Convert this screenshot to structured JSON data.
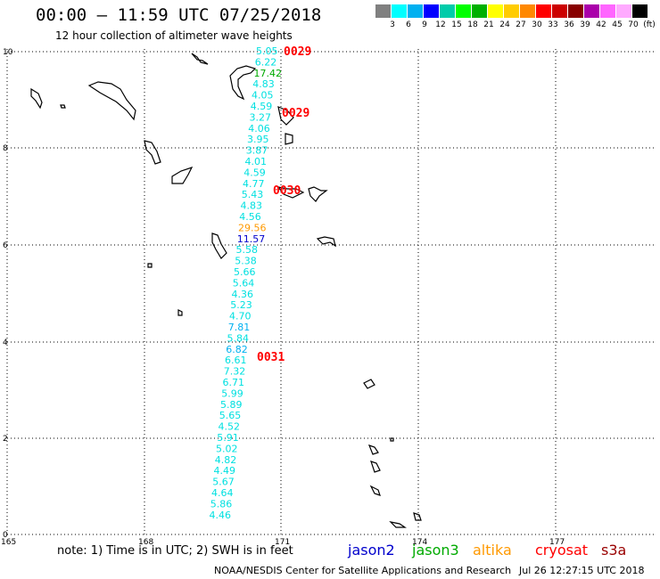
{
  "header": {
    "title": "00:00 — 11:59 UTC 07/25/2018",
    "subtitle": "12 hour collection of altimeter wave heights"
  },
  "color_scale": {
    "colors": [
      "#808080",
      "#00ffff",
      "#00b0f0",
      "#0000ff",
      "#00ccaa",
      "#00ff00",
      "#00b000",
      "#ffff00",
      "#ffcc00",
      "#ff8800",
      "#ff0000",
      "#cc0000",
      "#880000",
      "#aa00aa",
      "#ff66ff",
      "#ffaaff",
      "#000000"
    ],
    "labels": [
      "3",
      "6",
      "9",
      "12",
      "15",
      "18",
      "21",
      "24",
      "27",
      "30",
      "33",
      "36",
      "39",
      "42",
      "45",
      "70",
      "(ft)"
    ]
  },
  "map": {
    "lat_labels": [
      "10",
      "8",
      "6",
      "4",
      "2",
      "0"
    ],
    "lon_labels": [
      "165",
      "168",
      "171",
      "174",
      "177"
    ],
    "swh_values": [
      {
        "v": "5.05",
        "c": "#00e0e0"
      },
      {
        "v": "6.22",
        "c": "#00e0e0"
      },
      {
        "v": "17.42",
        "c": "#00aa00"
      },
      {
        "v": "4.83",
        "c": "#00e0e0"
      },
      {
        "v": "4.05",
        "c": "#00e0e0"
      },
      {
        "v": "4.59",
        "c": "#00e0e0"
      },
      {
        "v": "3.27",
        "c": "#00e0e0"
      },
      {
        "v": "4.06",
        "c": "#00e0e0"
      },
      {
        "v": "3.95",
        "c": "#00e0e0"
      },
      {
        "v": "3.87",
        "c": "#00e0e0"
      },
      {
        "v": "4.01",
        "c": "#00e0e0"
      },
      {
        "v": "4.59",
        "c": "#00e0e0"
      },
      {
        "v": "4.77",
        "c": "#00e0e0"
      },
      {
        "v": "5.43",
        "c": "#00e0e0"
      },
      {
        "v": "4.83",
        "c": "#00e0e0"
      },
      {
        "v": "4.56",
        "c": "#00e0e0"
      },
      {
        "v": "29.56",
        "c": "#ff9900"
      },
      {
        "v": "11.57",
        "c": "#0000cc"
      },
      {
        "v": "5.58",
        "c": "#00e0e0"
      },
      {
        "v": "5.38",
        "c": "#00e0e0"
      },
      {
        "v": "5.66",
        "c": "#00e0e0"
      },
      {
        "v": "5.64",
        "c": "#00e0e0"
      },
      {
        "v": "4.36",
        "c": "#00e0e0"
      },
      {
        "v": "5.23",
        "c": "#00e0e0"
      },
      {
        "v": "4.70",
        "c": "#00e0e0"
      },
      {
        "v": "7.81",
        "c": "#00b0f0"
      },
      {
        "v": "5.84",
        "c": "#00e0e0"
      },
      {
        "v": "6.82",
        "c": "#00b0f0"
      },
      {
        "v": "6.61",
        "c": "#00e0e0"
      },
      {
        "v": "7.32",
        "c": "#00e0e0"
      },
      {
        "v": "6.71",
        "c": "#00e0e0"
      },
      {
        "v": "5.99",
        "c": "#00e0e0"
      },
      {
        "v": "5.89",
        "c": "#00e0e0"
      },
      {
        "v": "5.65",
        "c": "#00e0e0"
      },
      {
        "v": "4.52",
        "c": "#00e0e0"
      },
      {
        "v": "5.91",
        "c": "#00e0e0"
      },
      {
        "v": "5.02",
        "c": "#00e0e0"
      },
      {
        "v": "4.82",
        "c": "#00e0e0"
      },
      {
        "v": "4.49",
        "c": "#00e0e0"
      },
      {
        "v": "5.67",
        "c": "#00e0e0"
      },
      {
        "v": "4.64",
        "c": "#00e0e0"
      },
      {
        "v": "5.86",
        "c": "#00e0e0"
      },
      {
        "v": "4.46",
        "c": "#00e0e0"
      }
    ],
    "time_labels": [
      "0029",
      "0029",
      "0030",
      "0031"
    ],
    "time_color": "#ff0000"
  },
  "footer": {
    "note": "note: 1) Time is in UTC; 2) SWH is in feet",
    "satellites": [
      {
        "name": "jason2",
        "color": "#0000cc"
      },
      {
        "name": "jason3",
        "color": "#00aa00"
      },
      {
        "name": "altika",
        "color": "#ff9900"
      },
      {
        "name": "cryosat",
        "color": "#ff0000"
      },
      {
        "name": "s3a",
        "color": "#990000"
      }
    ],
    "credit": "NOAA/NESDIS Center for Satellite Applications and Research",
    "timestamp": "Jul 26 12:27:15 UTC 2018"
  }
}
